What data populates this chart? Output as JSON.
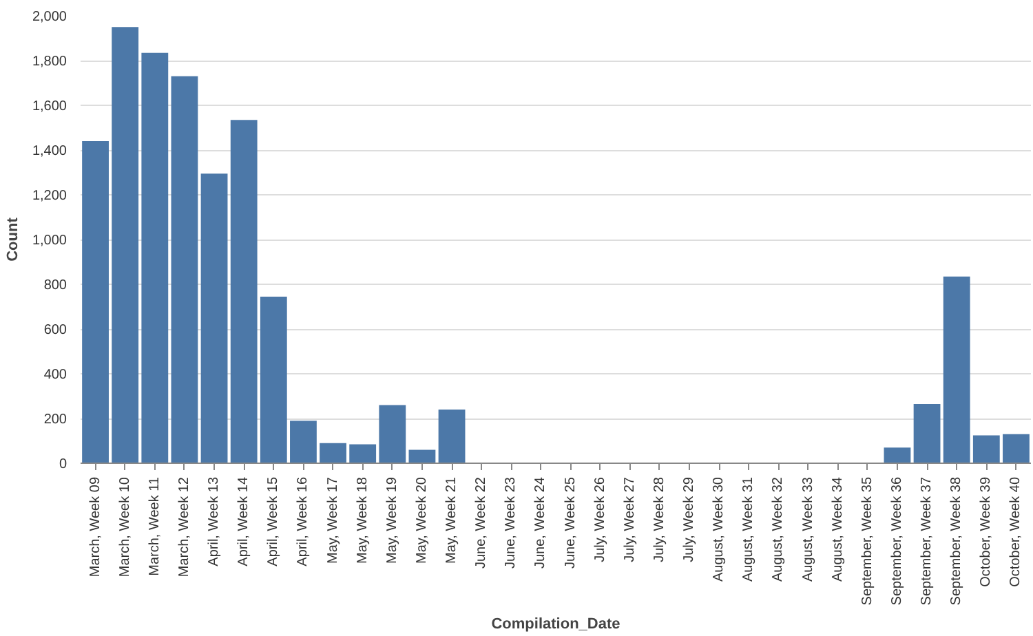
{
  "chart_data": {
    "type": "bar",
    "xlabel": "Compilation_Date",
    "ylabel": "Count",
    "color": "#4c78a8",
    "categories": [
      "March, Week 09",
      "March, Week 10",
      "March, Week 11",
      "March, Week 12",
      "April, Week 13",
      "April, Week 14",
      "April, Week 15",
      "April, Week 16",
      "May, Week 17",
      "May, Week 18",
      "May, Week 19",
      "May, Week 20",
      "May, Week 21",
      "June, Week 22",
      "June, Week 23",
      "June, Week 24",
      "June, Week 25",
      "July, Week 26",
      "July, Week 27",
      "July, Week 28",
      "July, Week 29",
      "August, Week 30",
      "August, Week 31",
      "August, Week 32",
      "August, Week 33",
      "August, Week 34",
      "September, Week 35",
      "September, Week 36",
      "September, Week 37",
      "September, Week 38",
      "October, Week 39",
      "October, Week 40"
    ],
    "values": [
      1440,
      1950,
      1835,
      1730,
      1295,
      1535,
      745,
      190,
      90,
      85,
      260,
      60,
      240,
      null,
      null,
      null,
      null,
      null,
      null,
      null,
      null,
      null,
      null,
      null,
      null,
      null,
      null,
      70,
      265,
      835,
      125,
      130
    ],
    "ylim": [
      0,
      2000
    ],
    "yticks": [
      {
        "value": 0,
        "label": "0"
      },
      {
        "value": 200,
        "label": "200"
      },
      {
        "value": 400,
        "label": "400"
      },
      {
        "value": 600,
        "label": "600"
      },
      {
        "value": 800,
        "label": "800"
      },
      {
        "value": 1000,
        "label": "1,000"
      },
      {
        "value": 1200,
        "label": "1,200"
      },
      {
        "value": 1400,
        "label": "1,400"
      },
      {
        "value": 1600,
        "label": "1,600"
      },
      {
        "value": 1800,
        "label": "1,800"
      },
      {
        "value": 2000,
        "label": "2,000"
      }
    ],
    "grid": "y"
  }
}
